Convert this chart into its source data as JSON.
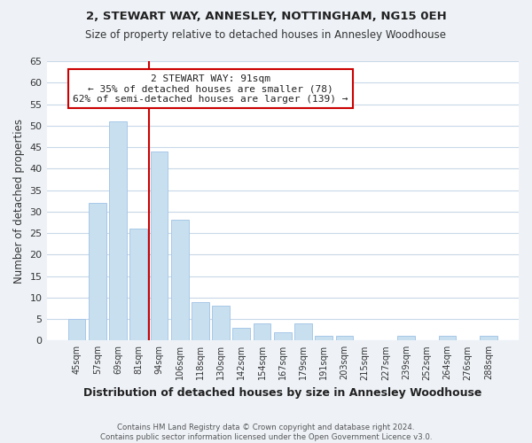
{
  "title": "2, STEWART WAY, ANNESLEY, NOTTINGHAM, NG15 0EH",
  "subtitle": "Size of property relative to detached houses in Annesley Woodhouse",
  "xlabel": "Distribution of detached houses by size in Annesley Woodhouse",
  "ylabel": "Number of detached properties",
  "footer1": "Contains HM Land Registry data © Crown copyright and database right 2024.",
  "footer2": "Contains public sector information licensed under the Open Government Licence v3.0.",
  "bin_labels": [
    "45sqm",
    "57sqm",
    "69sqm",
    "81sqm",
    "94sqm",
    "106sqm",
    "118sqm",
    "130sqm",
    "142sqm",
    "154sqm",
    "167sqm",
    "179sqm",
    "191sqm",
    "203sqm",
    "215sqm",
    "227sqm",
    "239sqm",
    "252sqm",
    "264sqm",
    "276sqm",
    "288sqm"
  ],
  "bin_values": [
    5,
    32,
    51,
    26,
    44,
    28,
    9,
    8,
    3,
    4,
    2,
    4,
    1,
    1,
    0,
    0,
    1,
    0,
    1,
    0,
    1
  ],
  "bar_color": "#c8dff0",
  "bar_edge_color": "#a8c8e8",
  "highlight_color": "#cc0000",
  "annotation_line0": "2 STEWART WAY: 91sqm",
  "annotation_line1": "← 35% of detached houses are smaller (78)",
  "annotation_line2": "62% of semi-detached houses are larger (139) →",
  "annotation_box_color": "#ffffff",
  "annotation_box_edge": "#cc0000",
  "ylim": [
    0,
    65
  ],
  "yticks": [
    0,
    5,
    10,
    15,
    20,
    25,
    30,
    35,
    40,
    45,
    50,
    55,
    60,
    65
  ],
  "background_color": "#eef2f7",
  "plot_bg_color": "#ffffff",
  "grid_color": "#c8d8e8"
}
